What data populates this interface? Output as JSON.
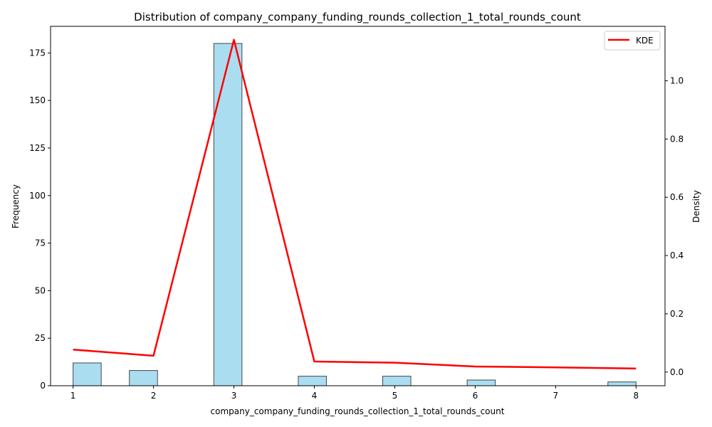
{
  "chart_data": {
    "type": "bar",
    "title": "Distribution of company_company_funding_rounds_collection_1_total_rounds_count",
    "xlabel": "company_company_funding_rounds_collection_1_total_rounds_count",
    "ylabel": "Frequency",
    "y2label": "Density",
    "xlim": [
      0.72,
      8.36
    ],
    "ylim": [
      0,
      189
    ],
    "y2lim": [
      -0.047,
      1.187
    ],
    "x_ticks": [
      1,
      2,
      3,
      4,
      5,
      6,
      7,
      8
    ],
    "y_ticks": [
      0,
      25,
      50,
      75,
      100,
      125,
      150,
      175
    ],
    "y2_ticks": [
      0.0,
      0.2,
      0.4,
      0.6,
      0.8,
      1.0
    ],
    "bars": [
      {
        "x0": 1.0,
        "x1": 1.35,
        "count": 12
      },
      {
        "x0": 1.7,
        "x1": 2.05,
        "count": 8
      },
      {
        "x0": 2.75,
        "x1": 3.1,
        "count": 180
      },
      {
        "x0": 3.8,
        "x1": 4.15,
        "count": 5
      },
      {
        "x0": 4.85,
        "x1": 5.2,
        "count": 5
      },
      {
        "x0": 5.9,
        "x1": 6.25,
        "count": 3
      },
      {
        "x0": 7.65,
        "x1": 8.0,
        "count": 2
      }
    ],
    "series": [
      {
        "name": "KDE",
        "x": [
          1,
          2,
          3,
          4,
          5,
          6,
          7,
          8
        ],
        "values": [
          0.077,
          0.056,
          1.141,
          0.036,
          0.032,
          0.019,
          0.016,
          0.012
        ]
      }
    ],
    "legend_position": "top-right",
    "grid": false,
    "colors": {
      "bar_fill": "#87ceeb",
      "bar_edge": "#000000",
      "kde_line": "#ff0000"
    }
  }
}
